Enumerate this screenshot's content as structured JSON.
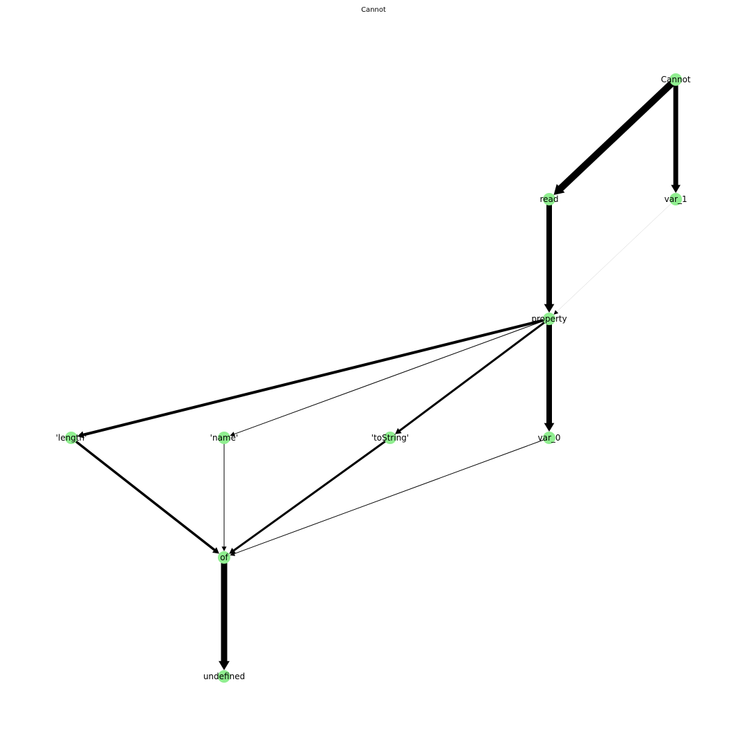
{
  "title": "Cannot",
  "colors": {
    "node": "#90ee90",
    "edge": "#000000",
    "background": "#ffffff"
  },
  "nodes": [
    {
      "id": "Cannot",
      "label": "Cannot"
    },
    {
      "id": "read",
      "label": "read"
    },
    {
      "id": "var_1",
      "label": "var_1"
    },
    {
      "id": "property",
      "label": "property"
    },
    {
      "id": "length",
      "label": "'length'"
    },
    {
      "id": "name",
      "label": "'name'"
    },
    {
      "id": "toString",
      "label": "'toString'"
    },
    {
      "id": "var_0",
      "label": "var_0"
    },
    {
      "id": "of",
      "label": "of"
    },
    {
      "id": "undefined",
      "label": "undefined"
    }
  ],
  "edges": [
    {
      "source": "Cannot",
      "target": "read",
      "weight": 10
    },
    {
      "source": "Cannot",
      "target": "var_1",
      "weight": 7
    },
    {
      "source": "read",
      "target": "property",
      "weight": 8
    },
    {
      "source": "var_1",
      "target": "property",
      "weight": 0.3
    },
    {
      "source": "property",
      "target": "length",
      "weight": 4
    },
    {
      "source": "property",
      "target": "name",
      "weight": 1
    },
    {
      "source": "property",
      "target": "toString",
      "weight": 3
    },
    {
      "source": "property",
      "target": "var_0",
      "weight": 8
    },
    {
      "source": "length",
      "target": "of",
      "weight": 3.5
    },
    {
      "source": "name",
      "target": "of",
      "weight": 1
    },
    {
      "source": "toString",
      "target": "of",
      "weight": 3
    },
    {
      "source": "var_0",
      "target": "of",
      "weight": 1
    },
    {
      "source": "of",
      "target": "undefined",
      "weight": 9
    }
  ]
}
